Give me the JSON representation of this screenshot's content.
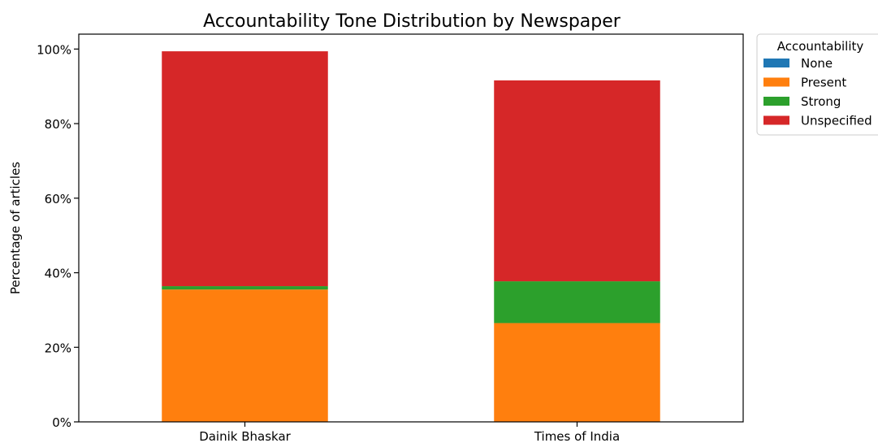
{
  "chart_data": {
    "type": "bar",
    "stacked": true,
    "title": "Accountability Tone Distribution by Newspaper",
    "xlabel": "",
    "ylabel": "Percentage of articles",
    "categories": [
      "Dainik Bhaskar",
      "Times of India"
    ],
    "series": [
      {
        "name": "None",
        "color": "#1f77b4",
        "values": [
          0.0,
          0.0
        ]
      },
      {
        "name": "Present",
        "color": "#ff7f0e",
        "values": [
          35.5,
          26.5
        ]
      },
      {
        "name": "Strong",
        "color": "#2ca02c",
        "values": [
          0.9,
          11.2
        ]
      },
      {
        "name": "Unspecified",
        "color": "#d62728",
        "values": [
          63.0,
          53.9
        ]
      }
    ],
    "ylim": [
      0,
      104
    ],
    "yticks": [
      {
        "value": 0,
        "label": "0%"
      },
      {
        "value": 20,
        "label": "20%"
      },
      {
        "value": 40,
        "label": "40%"
      },
      {
        "value": 60,
        "label": "60%"
      },
      {
        "value": 80,
        "label": "80%"
      },
      {
        "value": 100,
        "label": "100%"
      }
    ],
    "grid": false,
    "legend": {
      "title": "Accountability",
      "placement": "outside top-right"
    }
  }
}
